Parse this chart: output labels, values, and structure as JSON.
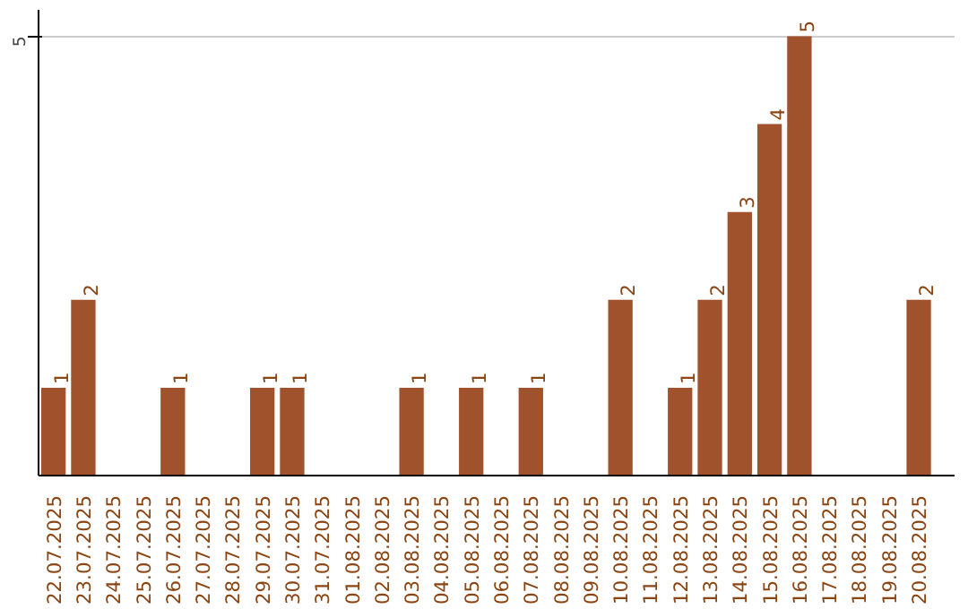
{
  "chart_data": {
    "type": "bar",
    "categories": [
      "22.07.2025",
      "23.07.2025",
      "24.07.2025",
      "25.07.2025",
      "26.07.2025",
      "27.07.2025",
      "28.07.2025",
      "29.07.2025",
      "30.07.2025",
      "31.07.2025",
      "01.08.2025",
      "02.08.2025",
      "03.08.2025",
      "04.08.2025",
      "05.08.2025",
      "06.08.2025",
      "07.08.2025",
      "08.08.2025",
      "09.08.2025",
      "10.08.2025",
      "11.08.2025",
      "12.08.2025",
      "13.08.2025",
      "14.08.2025",
      "15.08.2025",
      "16.08.2025",
      "17.08.2025",
      "18.08.2025",
      "19.08.2025",
      "20.08.2025"
    ],
    "values": [
      1,
      2,
      0,
      0,
      1,
      0,
      0,
      1,
      1,
      0,
      0,
      0,
      1,
      0,
      1,
      0,
      1,
      0,
      0,
      2,
      0,
      1,
      2,
      3,
      4,
      5,
      0,
      0,
      0,
      2
    ],
    "value_labels": [
      "1",
      "2",
      null,
      null,
      "1",
      null,
      null,
      "1",
      "1",
      null,
      null,
      null,
      "1",
      null,
      "1",
      null,
      "1",
      null,
      null,
      "2",
      null,
      "1",
      "2",
      "3",
      "4",
      "5",
      null,
      null,
      null,
      "2"
    ],
    "color": "#a0522d",
    "ylim": [
      0,
      5.3
    ],
    "yticks": [
      5
    ],
    "grid": "y"
  }
}
